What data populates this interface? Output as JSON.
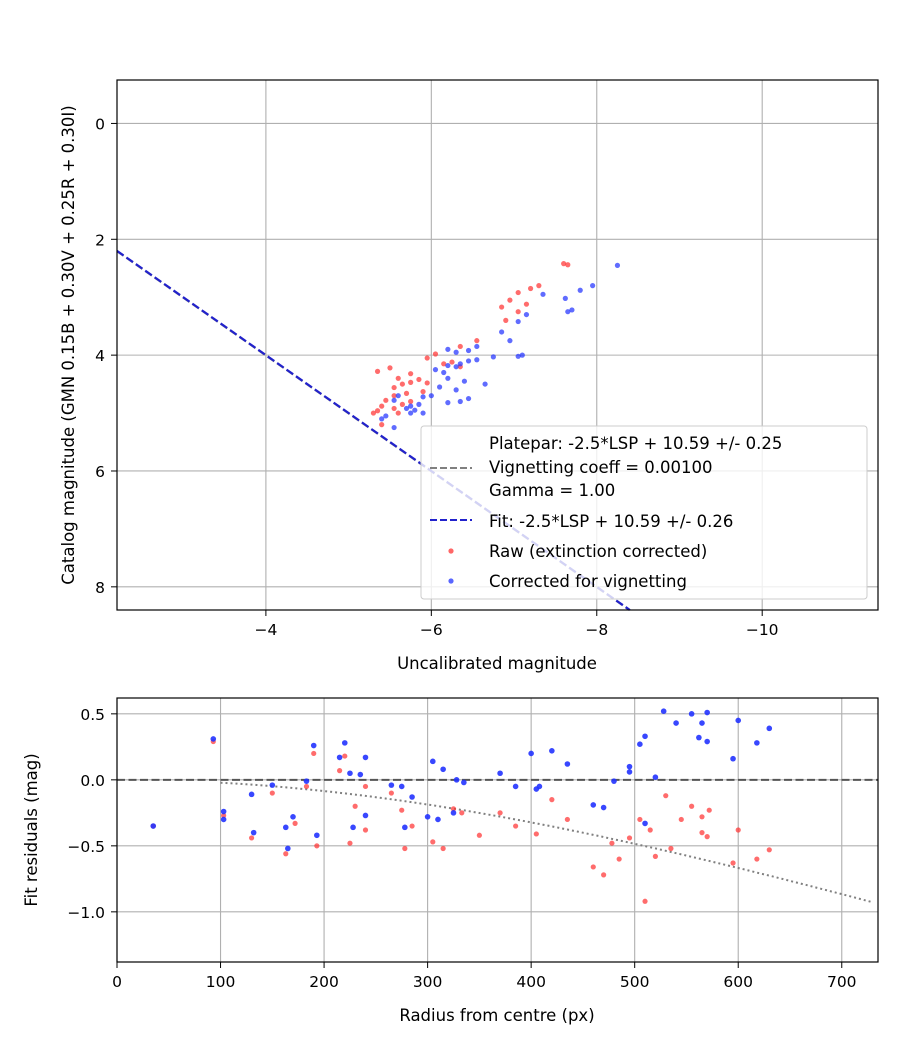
{
  "chart_data": [
    {
      "type": "scatter",
      "title": "",
      "xlabel": "Uncalibrated magnitude",
      "ylabel": "Catalog magnitude (GMN 0.15B + 0.30V + 0.25R + 0.30I)",
      "xlim": [
        -2.2,
        -11.4
      ],
      "ylim": [
        8.4,
        -0.75
      ],
      "x_inverted": true,
      "y_inverted": true,
      "xticks": [
        -4,
        -6,
        -8,
        -10
      ],
      "yticks": [
        0,
        2,
        4,
        6,
        8
      ],
      "grid": true,
      "legend_position": "lower-right",
      "legend": {
        "platepar": "Platepar: -2.5*LSP + 10.59 +/- 0.25",
        "vignetting": "Vignetting coeff = 0.00100",
        "gamma": "Gamma = 1.00",
        "fit": "Fit: -2.5*LSP + 10.59 +/- 0.26",
        "raw": "Raw (extinction corrected)",
        "corrected": "Corrected for vignetting"
      },
      "lines": [
        {
          "name": "Platepar: -2.5*LSP + 10.59 +/- 0.25",
          "color": "#808080",
          "style": "dashed",
          "slope": -1,
          "intercept": 0.005
        },
        {
          "name": "Fit: -2.5*LSP + 10.59 +/- 0.26",
          "color": "#2222cc",
          "style": "dashed",
          "slope": -1,
          "intercept": 0.0
        }
      ],
      "series": [
        {
          "name": "Raw (extinction corrected)",
          "color": "#ff3333",
          "points": [
            [
              -7.6,
              2.42
            ],
            [
              -7.65,
              2.44
            ],
            [
              -7.3,
              2.8
            ],
            [
              -7.2,
              2.85
            ],
            [
              -7.05,
              2.92
            ],
            [
              -6.95,
              3.05
            ],
            [
              -7.15,
              3.12
            ],
            [
              -6.85,
              3.17
            ],
            [
              -7.05,
              3.25
            ],
            [
              -6.9,
              3.4
            ],
            [
              -6.55,
              3.75
            ],
            [
              -6.35,
              3.85
            ],
            [
              -6.05,
              3.98
            ],
            [
              -5.95,
              4.05
            ],
            [
              -6.25,
              4.12
            ],
            [
              -6.15,
              4.15
            ],
            [
              -6.35,
              4.2
            ],
            [
              -5.5,
              4.22
            ],
            [
              -5.35,
              4.28
            ],
            [
              -5.75,
              4.32
            ],
            [
              -5.6,
              4.4
            ],
            [
              -5.85,
              4.42
            ],
            [
              -5.75,
              4.47
            ],
            [
              -5.65,
              4.5
            ],
            [
              -5.95,
              4.48
            ],
            [
              -5.55,
              4.56
            ],
            [
              -5.9,
              4.63
            ],
            [
              -5.7,
              4.66
            ],
            [
              -5.55,
              4.7
            ],
            [
              -5.45,
              4.78
            ],
            [
              -5.75,
              4.8
            ],
            [
              -5.65,
              4.85
            ],
            [
              -5.4,
              4.88
            ],
            [
              -5.55,
              4.92
            ],
            [
              -5.35,
              4.96
            ],
            [
              -5.6,
              5.0
            ],
            [
              -5.3,
              5.0
            ],
            [
              -5.4,
              5.2
            ]
          ]
        },
        {
          "name": "Corrected for vignetting",
          "color": "#2233ff",
          "points": [
            [
              -8.25,
              2.45
            ],
            [
              -7.95,
              2.8
            ],
            [
              -7.8,
              2.88
            ],
            [
              -7.62,
              3.02
            ],
            [
              -7.7,
              3.22
            ],
            [
              -7.65,
              3.25
            ],
            [
              -7.35,
              2.95
            ],
            [
              -7.15,
              3.3
            ],
            [
              -7.05,
              3.42
            ],
            [
              -6.85,
              3.6
            ],
            [
              -6.95,
              3.75
            ],
            [
              -6.55,
              3.85
            ],
            [
              -6.45,
              3.92
            ],
            [
              -6.3,
              3.95
            ],
            [
              -6.2,
              3.9
            ],
            [
              -7.1,
              4.0
            ],
            [
              -7.05,
              4.02
            ],
            [
              -6.75,
              4.03
            ],
            [
              -6.55,
              4.08
            ],
            [
              -6.45,
              4.1
            ],
            [
              -6.35,
              4.15
            ],
            [
              -6.2,
              4.18
            ],
            [
              -6.3,
              4.2
            ],
            [
              -6.05,
              4.25
            ],
            [
              -6.15,
              4.3
            ],
            [
              -6.2,
              4.4
            ],
            [
              -6.4,
              4.45
            ],
            [
              -6.65,
              4.5
            ],
            [
              -6.1,
              4.55
            ],
            [
              -6.3,
              4.6
            ],
            [
              -6.0,
              4.7
            ],
            [
              -5.9,
              4.72
            ],
            [
              -6.45,
              4.75
            ],
            [
              -6.35,
              4.8
            ],
            [
              -6.2,
              4.82
            ],
            [
              -5.85,
              4.85
            ],
            [
              -5.75,
              4.88
            ],
            [
              -5.6,
              4.7
            ],
            [
              -5.55,
              4.78
            ],
            [
              -5.7,
              4.92
            ],
            [
              -5.8,
              4.95
            ],
            [
              -5.9,
              5.0
            ],
            [
              -5.75,
              5.0
            ],
            [
              -5.45,
              5.05
            ],
            [
              -5.4,
              5.1
            ],
            [
              -5.55,
              5.25
            ]
          ]
        }
      ]
    },
    {
      "type": "scatter",
      "title": "",
      "xlabel": "Radius from centre (px)",
      "ylabel": "Fit residuals (mag)",
      "xlim": [
        0,
        735
      ],
      "ylim": [
        -1.38,
        0.62
      ],
      "xticks": [
        0,
        100,
        200,
        300,
        400,
        500,
        600,
        700
      ],
      "yticks": [
        0.5,
        0.0,
        -0.5,
        -1.0
      ],
      "yticklabels": [
        "0.5",
        "0.0",
        "−0.5",
        "−1.0"
      ],
      "grid": true,
      "lines": [
        {
          "name": "zero",
          "color": "#555555",
          "style": "dashed"
        },
        {
          "name": "vignetting model",
          "color": "#808080",
          "style": "dotted",
          "coeff": 0.001
        }
      ],
      "series": [
        {
          "name": "Raw (extinction corrected)",
          "color": "#ff3333",
          "points": [
            [
              35,
              -0.35
            ],
            [
              93,
              0.29
            ],
            [
              103,
              -0.27
            ],
            [
              130,
              -0.44
            ],
            [
              150,
              -0.1
            ],
            [
              163,
              -0.56
            ],
            [
              172,
              -0.33
            ],
            [
              183,
              -0.05
            ],
            [
              193,
              -0.5
            ],
            [
              190,
              0.2
            ],
            [
              215,
              0.07
            ],
            [
              220,
              0.18
            ],
            [
              225,
              -0.48
            ],
            [
              230,
              -0.2
            ],
            [
              240,
              -0.05
            ],
            [
              240,
              -0.38
            ],
            [
              265,
              -0.1
            ],
            [
              275,
              -0.23
            ],
            [
              278,
              -0.52
            ],
            [
              285,
              -0.35
            ],
            [
              305,
              -0.47
            ],
            [
              315,
              -0.52
            ],
            [
              325,
              -0.22
            ],
            [
              333,
              -0.25
            ],
            [
              350,
              -0.42
            ],
            [
              370,
              -0.25
            ],
            [
              385,
              -0.35
            ],
            [
              405,
              -0.41
            ],
            [
              420,
              -0.15
            ],
            [
              435,
              -0.3
            ],
            [
              460,
              -0.66
            ],
            [
              470,
              -0.72
            ],
            [
              478,
              -0.48
            ],
            [
              485,
              -0.6
            ],
            [
              495,
              -0.44
            ],
            [
              510,
              -0.92
            ],
            [
              505,
              -0.3
            ],
            [
              515,
              -0.38
            ],
            [
              520,
              -0.58
            ],
            [
              530,
              -0.12
            ],
            [
              535,
              -0.52
            ],
            [
              545,
              -0.3
            ],
            [
              555,
              -0.2
            ],
            [
              565,
              -0.4
            ],
            [
              565,
              -0.28
            ],
            [
              570,
              -0.43
            ],
            [
              572,
              -0.23
            ],
            [
              595,
              -0.63
            ],
            [
              600,
              -0.38
            ],
            [
              618,
              -0.6
            ],
            [
              630,
              -0.53
            ]
          ]
        },
        {
          "name": "Corrected for vignetting",
          "color": "#2233ff",
          "points": [
            [
              35,
              -0.35
            ],
            [
              93,
              0.31
            ],
            [
              103,
              -0.24
            ],
            [
              103,
              -0.3
            ],
            [
              130,
              -0.11
            ],
            [
              132,
              -0.4
            ],
            [
              150,
              -0.04
            ],
            [
              163,
              -0.36
            ],
            [
              165,
              -0.52
            ],
            [
              170,
              -0.28
            ],
            [
              183,
              -0.01
            ],
            [
              190,
              0.26
            ],
            [
              193,
              -0.42
            ],
            [
              215,
              0.17
            ],
            [
              220,
              0.28
            ],
            [
              225,
              0.05
            ],
            [
              228,
              -0.36
            ],
            [
              235,
              0.04
            ],
            [
              240,
              0.17
            ],
            [
              240,
              -0.27
            ],
            [
              265,
              -0.04
            ],
            [
              275,
              -0.05
            ],
            [
              278,
              -0.36
            ],
            [
              285,
              -0.13
            ],
            [
              300,
              -0.28
            ],
            [
              305,
              0.14
            ],
            [
              310,
              -0.3
            ],
            [
              315,
              0.08
            ],
            [
              325,
              -0.25
            ],
            [
              328,
              0.0
            ],
            [
              335,
              -0.02
            ],
            [
              370,
              0.05
            ],
            [
              385,
              -0.05
            ],
            [
              400,
              0.2
            ],
            [
              405,
              -0.07
            ],
            [
              408,
              -0.05
            ],
            [
              420,
              0.22
            ],
            [
              435,
              0.12
            ],
            [
              460,
              -0.19
            ],
            [
              470,
              -0.21
            ],
            [
              480,
              -0.01
            ],
            [
              495,
              0.06
            ],
            [
              495,
              0.1
            ],
            [
              505,
              0.27
            ],
            [
              510,
              0.33
            ],
            [
              510,
              -0.33
            ],
            [
              520,
              0.02
            ],
            [
              528,
              0.52
            ],
            [
              540,
              0.43
            ],
            [
              555,
              0.5
            ],
            [
              562,
              0.32
            ],
            [
              565,
              0.43
            ],
            [
              570,
              0.51
            ],
            [
              570,
              0.29
            ],
            [
              595,
              0.16
            ],
            [
              600,
              0.45
            ],
            [
              618,
              0.28
            ],
            [
              630,
              0.39
            ]
          ]
        }
      ]
    }
  ]
}
